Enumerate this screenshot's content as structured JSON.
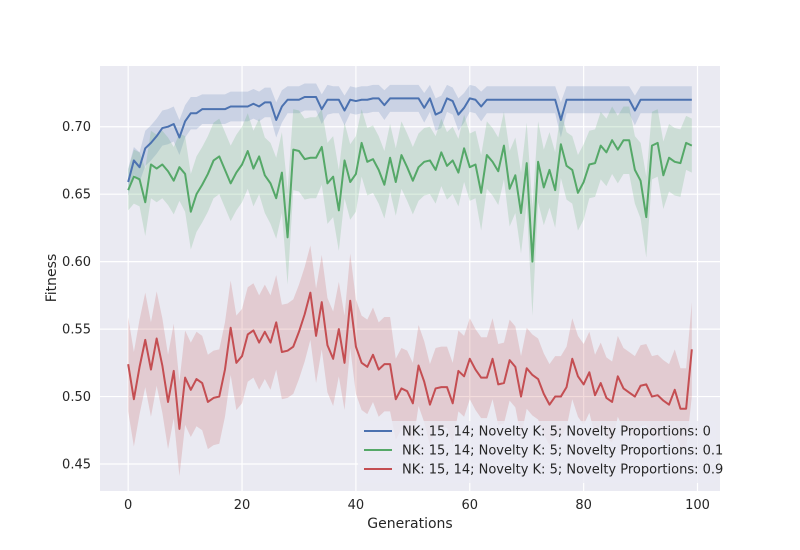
{
  "chart_data": {
    "type": "line",
    "title": "",
    "xlabel": "Generations",
    "ylabel": "Fitness",
    "xlim": [
      -4.95,
      103.95
    ],
    "ylim": [
      0.43,
      0.745
    ],
    "xticks": [
      0,
      20,
      40,
      60,
      80,
      100
    ],
    "yticks": [
      0.45,
      0.5,
      0.55,
      0.6,
      0.65,
      0.7
    ],
    "xtick_labels": [
      "0",
      "20",
      "40",
      "60",
      "80",
      "100"
    ],
    "ytick_labels": [
      "0.45",
      "0.50",
      "0.55",
      "0.60",
      "0.65",
      "0.70"
    ],
    "grid": true,
    "legend_position": "lower-right",
    "style": "seaborn-darkgrid with shaded confidence bands",
    "series": [
      {
        "name": "NK: 15, 14; Novelty K: 5; Novelty Proportions: 0",
        "color": "#4C72B0",
        "values": [
          0.659,
          0.675,
          0.67,
          0.684,
          0.688,
          0.693,
          0.699,
          0.7,
          0.702,
          0.692,
          0.704,
          0.71,
          0.71,
          0.713,
          0.713,
          0.713,
          0.713,
          0.713,
          0.715,
          0.715,
          0.715,
          0.715,
          0.717,
          0.715,
          0.718,
          0.718,
          0.705,
          0.715,
          0.72,
          0.72,
          0.72,
          0.722,
          0.722,
          0.722,
          0.713,
          0.72,
          0.72,
          0.72,
          0.712,
          0.72,
          0.719,
          0.72,
          0.72,
          0.721,
          0.721,
          0.716,
          0.721,
          0.721,
          0.721,
          0.721,
          0.721,
          0.721,
          0.714,
          0.721,
          0.709,
          0.711,
          0.721,
          0.719,
          0.709,
          0.714,
          0.721,
          0.72,
          0.715,
          0.72,
          0.72,
          0.72,
          0.72,
          0.72,
          0.72,
          0.72,
          0.72,
          0.72,
          0.72,
          0.72,
          0.72,
          0.72,
          0.705,
          0.72,
          0.72,
          0.72,
          0.72,
          0.72,
          0.72,
          0.72,
          0.72,
          0.72,
          0.72,
          0.72,
          0.72,
          0.712,
          0.72,
          0.72,
          0.72,
          0.72,
          0.72,
          0.72,
          0.72,
          0.72,
          0.72,
          0.72
        ],
        "ci_half": [
          0.01,
          0.01,
          0.011,
          0.013,
          0.013,
          0.013,
          0.013,
          0.013,
          0.013,
          0.013,
          0.012,
          0.012,
          0.012,
          0.011,
          0.011,
          0.011,
          0.011,
          0.011,
          0.011,
          0.011,
          0.011,
          0.011,
          0.011,
          0.011,
          0.011,
          0.011,
          0.013,
          0.012,
          0.01,
          0.01,
          0.01,
          0.01,
          0.01,
          0.01,
          0.011,
          0.011,
          0.01,
          0.01,
          0.011,
          0.01,
          0.01,
          0.01,
          0.01,
          0.01,
          0.01,
          0.011,
          0.01,
          0.01,
          0.01,
          0.01,
          0.01,
          0.01,
          0.011,
          0.01,
          0.012,
          0.012,
          0.01,
          0.01,
          0.012,
          0.011,
          0.01,
          0.01,
          0.011,
          0.01,
          0.01,
          0.01,
          0.01,
          0.01,
          0.01,
          0.01,
          0.01,
          0.01,
          0.01,
          0.01,
          0.01,
          0.01,
          0.013,
          0.01,
          0.01,
          0.01,
          0.01,
          0.01,
          0.01,
          0.01,
          0.01,
          0.01,
          0.01,
          0.01,
          0.01,
          0.011,
          0.01,
          0.01,
          0.01,
          0.01,
          0.01,
          0.01,
          0.01,
          0.01,
          0.01,
          0.01
        ]
      },
      {
        "name": "NK: 15, 14; Novelty K: 5; Novelty Proportions: 0.1",
        "color": "#55A868",
        "values": [
          0.653,
          0.663,
          0.661,
          0.644,
          0.672,
          0.669,
          0.672,
          0.667,
          0.66,
          0.67,
          0.665,
          0.637,
          0.65,
          0.657,
          0.665,
          0.675,
          0.678,
          0.668,
          0.658,
          0.666,
          0.672,
          0.682,
          0.669,
          0.678,
          0.664,
          0.658,
          0.647,
          0.666,
          0.618,
          0.683,
          0.682,
          0.676,
          0.677,
          0.677,
          0.685,
          0.658,
          0.663,
          0.638,
          0.675,
          0.659,
          0.665,
          0.688,
          0.674,
          0.676,
          0.668,
          0.657,
          0.677,
          0.659,
          0.679,
          0.67,
          0.66,
          0.67,
          0.674,
          0.675,
          0.668,
          0.681,
          0.671,
          0.675,
          0.666,
          0.684,
          0.67,
          0.672,
          0.651,
          0.679,
          0.674,
          0.667,
          0.686,
          0.654,
          0.664,
          0.636,
          0.673,
          0.6,
          0.674,
          0.655,
          0.668,
          0.653,
          0.687,
          0.671,
          0.668,
          0.651,
          0.659,
          0.672,
          0.673,
          0.686,
          0.681,
          0.69,
          0.683,
          0.69,
          0.69,
          0.668,
          0.66,
          0.633,
          0.686,
          0.688,
          0.664,
          0.677,
          0.674,
          0.673,
          0.688,
          0.686
        ],
        "ci_half": [
          0.015,
          0.02,
          0.02,
          0.025,
          0.025,
          0.025,
          0.025,
          0.025,
          0.025,
          0.025,
          0.028,
          0.028,
          0.028,
          0.028,
          0.028,
          0.028,
          0.028,
          0.028,
          0.028,
          0.028,
          0.028,
          0.028,
          0.028,
          0.028,
          0.028,
          0.03,
          0.03,
          0.03,
          0.035,
          0.03,
          0.03,
          0.03,
          0.03,
          0.03,
          0.028,
          0.03,
          0.03,
          0.03,
          0.028,
          0.028,
          0.028,
          0.025,
          0.025,
          0.025,
          0.025,
          0.025,
          0.025,
          0.025,
          0.025,
          0.025,
          0.025,
          0.025,
          0.025,
          0.025,
          0.025,
          0.025,
          0.025,
          0.025,
          0.025,
          0.025,
          0.025,
          0.025,
          0.028,
          0.025,
          0.025,
          0.025,
          0.025,
          0.028,
          0.028,
          0.03,
          0.03,
          0.04,
          0.03,
          0.028,
          0.028,
          0.028,
          0.025,
          0.025,
          0.025,
          0.028,
          0.028,
          0.025,
          0.025,
          0.025,
          0.025,
          0.025,
          0.025,
          0.025,
          0.025,
          0.025,
          0.028,
          0.03,
          0.025,
          0.025,
          0.025,
          0.025,
          0.025,
          0.025,
          0.02,
          0.02
        ]
      },
      {
        "name": "NK: 15, 14; Novelty K: 5; Novelty Proportions: 0.9",
        "color": "#C44E52",
        "values": [
          0.524,
          0.498,
          0.522,
          0.542,
          0.52,
          0.543,
          0.523,
          0.496,
          0.519,
          0.476,
          0.514,
          0.505,
          0.513,
          0.51,
          0.496,
          0.499,
          0.5,
          0.52,
          0.551,
          0.525,
          0.53,
          0.546,
          0.549,
          0.54,
          0.548,
          0.54,
          0.555,
          0.533,
          0.534,
          0.537,
          0.548,
          0.561,
          0.577,
          0.545,
          0.57,
          0.538,
          0.528,
          0.55,
          0.525,
          0.571,
          0.537,
          0.525,
          0.522,
          0.531,
          0.52,
          0.524,
          0.524,
          0.498,
          0.506,
          0.504,
          0.495,
          0.523,
          0.511,
          0.494,
          0.506,
          0.507,
          0.507,
          0.495,
          0.519,
          0.515,
          0.528,
          0.52,
          0.514,
          0.514,
          0.528,
          0.509,
          0.51,
          0.527,
          0.522,
          0.5,
          0.521,
          0.516,
          0.513,
          0.502,
          0.494,
          0.5,
          0.5,
          0.507,
          0.528,
          0.515,
          0.509,
          0.518,
          0.501,
          0.51,
          0.499,
          0.496,
          0.515,
          0.506,
          0.503,
          0.5,
          0.508,
          0.509,
          0.5,
          0.501,
          0.497,
          0.494,
          0.505,
          0.491,
          0.491,
          0.535
        ],
        "ci_half": [
          0.035,
          0.035,
          0.035,
          0.035,
          0.035,
          0.035,
          0.035,
          0.035,
          0.035,
          0.035,
          0.035,
          0.035,
          0.035,
          0.035,
          0.035,
          0.035,
          0.035,
          0.035,
          0.035,
          0.035,
          0.035,
          0.035,
          0.035,
          0.035,
          0.035,
          0.035,
          0.035,
          0.035,
          0.035,
          0.035,
          0.035,
          0.035,
          0.035,
          0.035,
          0.035,
          0.035,
          0.035,
          0.035,
          0.035,
          0.035,
          0.035,
          0.035,
          0.035,
          0.035,
          0.035,
          0.035,
          0.035,
          0.03,
          0.03,
          0.03,
          0.03,
          0.03,
          0.03,
          0.03,
          0.03,
          0.03,
          0.03,
          0.03,
          0.03,
          0.03,
          0.03,
          0.03,
          0.03,
          0.03,
          0.03,
          0.03,
          0.03,
          0.03,
          0.03,
          0.03,
          0.03,
          0.03,
          0.03,
          0.03,
          0.03,
          0.03,
          0.03,
          0.03,
          0.03,
          0.03,
          0.03,
          0.03,
          0.03,
          0.03,
          0.03,
          0.03,
          0.03,
          0.03,
          0.03,
          0.03,
          0.03,
          0.03,
          0.03,
          0.03,
          0.03,
          0.03,
          0.03,
          0.03,
          0.03,
          0.035
        ]
      }
    ]
  },
  "colors": {
    "plot_background": "#EAEAF2",
    "grid": "#FFFFFF",
    "text": "#262626"
  }
}
